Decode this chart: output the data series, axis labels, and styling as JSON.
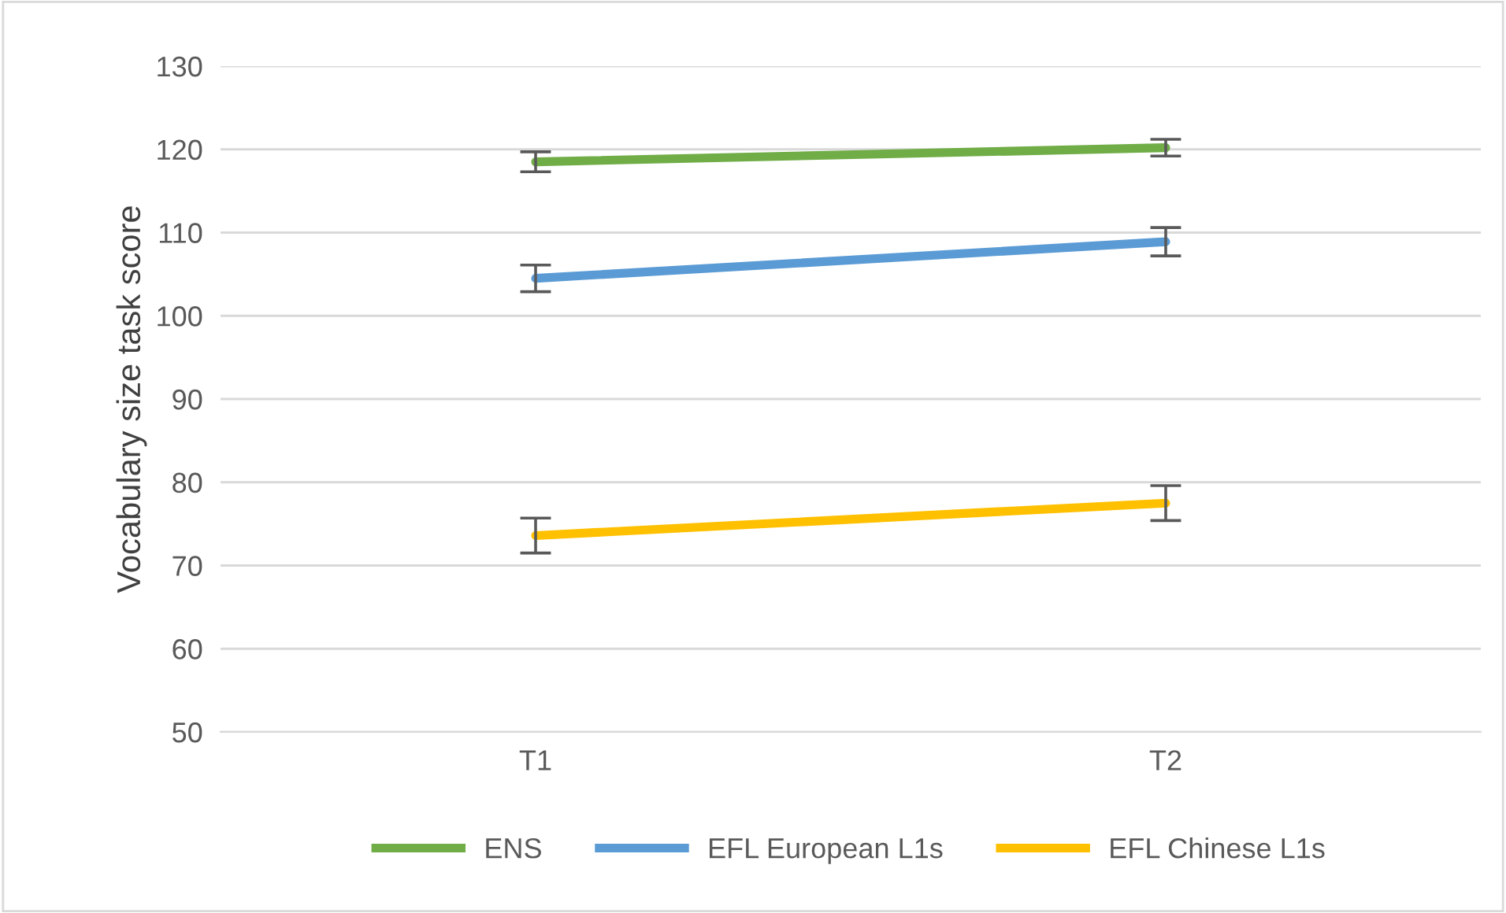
{
  "chart_data": {
    "type": "line",
    "ylabel": "Vocabulary size task score",
    "categories": [
      "T1",
      "T2"
    ],
    "series": [
      {
        "name": "ENS",
        "color": "#70ad47",
        "values": [
          118.5,
          120.2
        ],
        "errors": [
          1.2,
          1.0
        ]
      },
      {
        "name": "EFL European L1s",
        "color": "#5b9bd5",
        "values": [
          104.5,
          108.9
        ],
        "errors": [
          1.6,
          1.7
        ]
      },
      {
        "name": "EFL Chinese L1s",
        "color": "#ffc000",
        "values": [
          73.6,
          77.5
        ],
        "errors": [
          2.1,
          2.1
        ]
      }
    ],
    "ylim": [
      50,
      130
    ],
    "yticks": [
      50,
      60,
      70,
      80,
      90,
      100,
      110,
      120,
      130
    ],
    "grid": "y",
    "legend": "bottom",
    "marker": "none",
    "line_style": "solid"
  }
}
